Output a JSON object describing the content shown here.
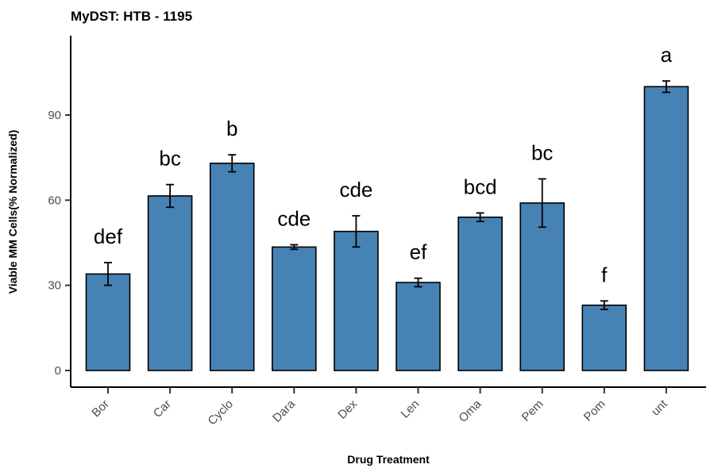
{
  "chart_data": {
    "type": "bar",
    "title": "MyDST: HTB - 1195",
    "xlabel": "Drug Treatment",
    "ylabel": "Viable MM Cells(% Normalized)",
    "ylim": [
      0,
      100
    ],
    "yticks": [
      0,
      30,
      60,
      90
    ],
    "categories": [
      "Bor",
      "Car",
      "Cyclo",
      "Dara",
      "Dex",
      "Len",
      "Oma",
      "Pem",
      "Pom",
      "unt"
    ],
    "values": [
      34,
      61.5,
      73,
      43.5,
      49,
      31,
      54,
      59,
      23,
      100
    ],
    "errors": [
      4,
      4,
      3,
      0.8,
      5.5,
      1.5,
      1.5,
      8.5,
      1.5,
      2
    ],
    "significance_labels": [
      "def",
      "bc",
      "b",
      "cde",
      "cde",
      "ef",
      "bcd",
      "bc",
      "f",
      "a"
    ],
    "bar_color": "#4682b4",
    "grid": false
  }
}
